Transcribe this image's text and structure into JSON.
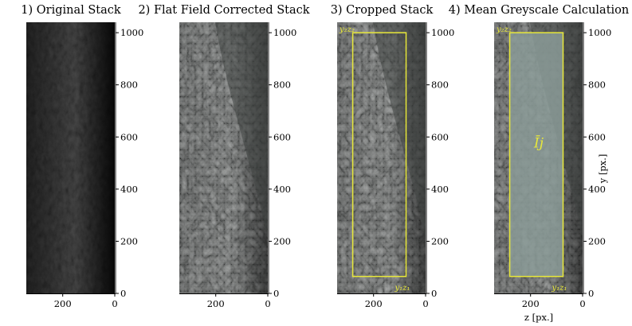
{
  "panels": [
    {
      "title": "1) Original Stack",
      "style": "original",
      "crop": false,
      "mean": false
    },
    {
      "title": "2) Flat Field Corrected Stack",
      "style": "corrected",
      "crop": false,
      "mean": false
    },
    {
      "title": "3) Cropped Stack",
      "style": "corrected",
      "crop": true,
      "mean": false,
      "corner_top": "y₂z₂",
      "corner_bottom": "y₁z₁"
    },
    {
      "title": "4) Mean Greyscale Calculation",
      "style": "corrected",
      "crop": true,
      "mean": true,
      "corner_top": "y₂z₂",
      "corner_bottom": "y₁z₁",
      "mean_label": "Īj"
    }
  ],
  "axes": {
    "y_ticks": [
      "0",
      "200",
      "400",
      "600",
      "800",
      "1000"
    ],
    "x_ticks": [
      "200",
      "0"
    ],
    "y_label": "y [px.]",
    "x_label": "z [px.]",
    "y_range": [
      0,
      1040
    ],
    "z_range": [
      340,
      0
    ],
    "crop_box": {
      "z": [
        280,
        75
      ],
      "y": [
        65,
        1000
      ]
    }
  },
  "colors": {
    "crop_box": "#e8e83a",
    "mean_fill": "#8a9a96"
  }
}
